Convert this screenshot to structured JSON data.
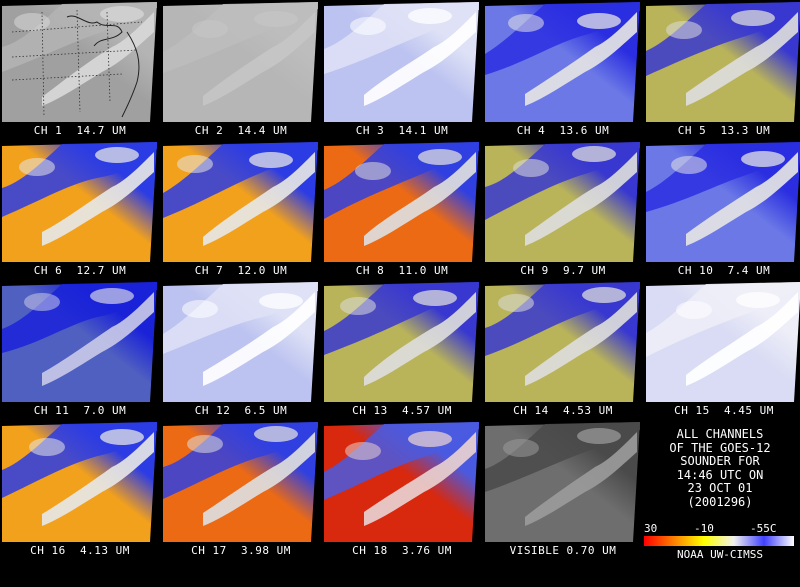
{
  "panels": [
    {
      "label": "CH 1  14.7 UM",
      "palette": "mono-light"
    },
    {
      "label": "CH 2  14.4 UM",
      "palette": "mono-flat"
    },
    {
      "label": "CH 3  14.1 UM",
      "palette": "pale-blue"
    },
    {
      "label": "CH 4  13.6 UM",
      "palette": "blue-white"
    },
    {
      "label": "CH 5  13.3 UM",
      "palette": "blue-yellow"
    },
    {
      "label": "CH 6  12.7 UM",
      "palette": "warm"
    },
    {
      "label": "CH 7  12.0 UM",
      "palette": "warm"
    },
    {
      "label": "CH 8  11.0 UM",
      "palette": "warm-red"
    },
    {
      "label": "CH 9  9.7 UM",
      "palette": "blue-yellow"
    },
    {
      "label": "CH 10  7.4 UM",
      "palette": "blue-white"
    },
    {
      "label": "CH 11  7.0 UM",
      "palette": "deep-blue"
    },
    {
      "label": "CH 12  6.5 UM",
      "palette": "pale-blue"
    },
    {
      "label": "CH 13  4.57 UM",
      "palette": "blue-yellow"
    },
    {
      "label": "CH 14  4.53 UM",
      "palette": "blue-yellow"
    },
    {
      "label": "CH 15  4.45 UM",
      "palette": "very-pale"
    },
    {
      "label": "CH 16  4.13 UM",
      "palette": "warm"
    },
    {
      "label": "CH 17  3.98 UM",
      "palette": "warm-red"
    },
    {
      "label": "CH 18  3.76 UM",
      "palette": "red"
    },
    {
      "label": "VISIBLE 0.70 UM",
      "palette": "visible"
    }
  ],
  "info": {
    "lines": [
      "ALL CHANNELS",
      "OF THE GOES-12",
      "SOUNDER FOR",
      "14:46 UTC ON",
      "23 OCT 01",
      "(2001296)"
    ],
    "scale_labels": [
      "30",
      "-10",
      "-55C"
    ],
    "credit": "NOAA UW-CIMSS"
  },
  "palettes": {
    "mono-light": {
      "sky": "#b4b4b4",
      "land": "#a0a0a0",
      "cloud": "#d8d8d8"
    },
    "mono-flat": {
      "sky": "#bdbdbd",
      "land": "#b6b6b6",
      "cloud": "#c6c6c6"
    },
    "pale-blue": {
      "sky": "#dfe2f6",
      "land": "#bcc3f0",
      "cloud": "#ffffff"
    },
    "very-pale": {
      "sky": "#eeeef8",
      "land": "#d9dcf4",
      "cloud": "#ffffff"
    },
    "blue-white": {
      "sky": "#2a2ee0",
      "land": "#6b78e6",
      "cloud": "#e4e4e4"
    },
    "blue-yellow": {
      "sky": "#3838d0",
      "land": "#b9b35a",
      "cloud": "#dcdcdc"
    },
    "deep-blue": {
      "sky": "#1a22d8",
      "land": "#5060c0",
      "cloud": "#c8c8e8"
    },
    "warm": {
      "sky": "#2c3ce4",
      "land": "#f2a11c",
      "cloud": "#e6e6e6"
    },
    "warm-red": {
      "sky": "#3040e0",
      "land": "#ec6a14",
      "cloud": "#dedede"
    },
    "red": {
      "sky": "#4a5ae0",
      "land": "#d8280e",
      "cloud": "#e8d0d0"
    },
    "visible": {
      "sky": "#4a4a4a",
      "land": "#6e6e6e",
      "cloud": "#9a9a9a"
    }
  },
  "colorbar_stops": [
    "#ff0000",
    "#ff8000",
    "#ffff00",
    "#f0f0f0",
    "#4040ff",
    "#ffffff"
  ]
}
